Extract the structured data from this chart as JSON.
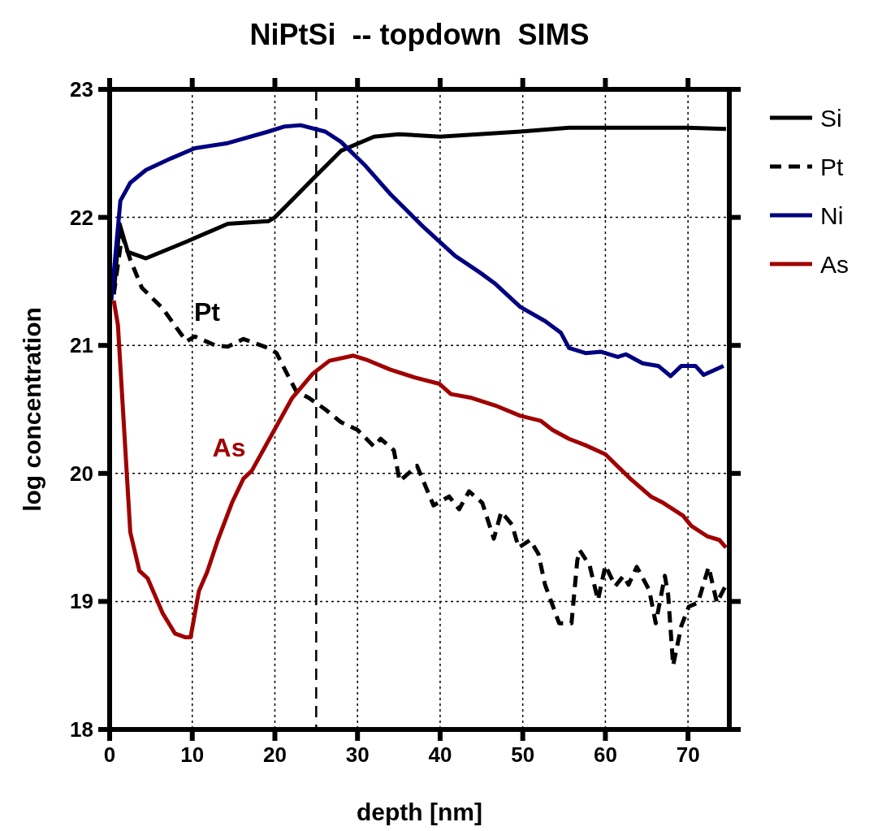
{
  "chart_data": {
    "type": "line",
    "title": "NiPtSi  -- topdown  SIMS",
    "xlabel": "depth [nm]",
    "ylabel": "log concentration",
    "xlim": [
      0,
      75
    ],
    "ylim": [
      18,
      23
    ],
    "xticks": [
      0,
      10,
      20,
      30,
      40,
      50,
      60,
      70
    ],
    "yticks": [
      18,
      19,
      20,
      21,
      22,
      23
    ],
    "grid": true,
    "legend": "right",
    "marker": "none",
    "ref_lines": [
      {
        "axis": "x",
        "value": 25,
        "line_style": "dashed",
        "color": "#000000"
      }
    ],
    "annotations": [
      "Pt",
      "As"
    ],
    "series": [
      {
        "name": "Si",
        "color": "#000000",
        "line_style": "solid",
        "x": [
          0.5,
          1.2,
          2.2,
          4.4,
          9.3,
          14.3,
          19.2,
          20,
          24.6,
          28,
          32,
          35,
          40,
          49.7,
          55.6,
          63.5,
          70,
          74.6
        ],
        "values": [
          21.4,
          21.95,
          21.73,
          21.68,
          21.81,
          21.95,
          21.97,
          22.0,
          22.3,
          22.52,
          22.63,
          22.65,
          22.63,
          22.67,
          22.7,
          22.7,
          22.7,
          22.69
        ]
      },
      {
        "name": "Pt",
        "color": "#000000",
        "line_style": "dashed",
        "x": [
          0.5,
          1.5,
          2.5,
          3.9,
          6.4,
          9.3,
          10.3,
          12.8,
          14.3,
          16.2,
          19.2,
          20.2,
          21.7,
          22.6,
          24.1,
          26.1,
          28,
          30,
          32,
          32.8,
          34.4,
          35.1,
          37.2,
          39.2,
          41.1,
          42.3,
          43.5,
          45.1,
          46.5,
          47.4,
          48.7,
          49.5,
          50.9,
          51.9,
          52.7,
          54.4,
          55.9,
          56.6,
          56.9,
          58.1,
          59.1,
          60,
          61.2,
          62.2,
          62.8,
          63.8,
          65.3,
          66.1,
          67.2,
          67.6,
          68.2,
          69.2,
          70.1,
          71.2,
          72.5,
          73.5,
          74.6
        ],
        "values": [
          21.4,
          21.86,
          21.67,
          21.45,
          21.29,
          21.03,
          21.07,
          21.0,
          20.99,
          21.05,
          20.98,
          20.94,
          20.75,
          20.64,
          20.59,
          20.5,
          20.4,
          20.34,
          20.21,
          20.27,
          20.18,
          19.94,
          20.06,
          19.75,
          19.82,
          19.72,
          19.86,
          19.77,
          19.49,
          19.7,
          19.6,
          19.42,
          19.48,
          19.37,
          19.13,
          18.83,
          18.83,
          19.32,
          19.4,
          19.28,
          19.01,
          19.28,
          19.12,
          19.2,
          19.13,
          19.27,
          19.09,
          18.83,
          19.2,
          19.05,
          18.5,
          18.81,
          18.96,
          18.99,
          19.27,
          18.99,
          19.13
        ]
      },
      {
        "name": "Ni",
        "color": "#000080",
        "line_style": "solid",
        "x": [
          0.2,
          1.3,
          2.5,
          4.4,
          7.4,
          10.3,
          14.3,
          19.2,
          21.2,
          23.1,
          26.1,
          28,
          31,
          34,
          37.9,
          41.8,
          44.8,
          46.7,
          49.7,
          52.7,
          54.6,
          55.6,
          57.6,
          59.5,
          61.5,
          62.5,
          64.5,
          66.4,
          67.9,
          69.2,
          70.9,
          71.9,
          74.3
        ],
        "values": [
          21.35,
          22.13,
          22.27,
          22.37,
          22.46,
          22.54,
          22.58,
          22.67,
          22.71,
          22.72,
          22.67,
          22.59,
          22.4,
          22.18,
          21.93,
          21.7,
          21.57,
          21.48,
          21.3,
          21.19,
          21.1,
          20.98,
          20.94,
          20.95,
          20.91,
          20.93,
          20.86,
          20.84,
          20.76,
          20.84,
          20.84,
          20.77,
          20.84
        ]
      },
      {
        "name": "As",
        "color": "#a00000",
        "line_style": "solid",
        "x": [
          0.5,
          1,
          2.5,
          3.6,
          4.6,
          6.4,
          7.9,
          9.2,
          9.8,
          10.8,
          11.8,
          13.1,
          14.8,
          16.2,
          17.2,
          20.2,
          22.1,
          24.6,
          26.6,
          29.5,
          31,
          34,
          36.9,
          39.9,
          41.3,
          43.8,
          46.7,
          49.7,
          52.2,
          53.6,
          55.6,
          57.6,
          60,
          63,
          65.5,
          67,
          69.4,
          70.4,
          72.3,
          73.8,
          74.6
        ],
        "values": [
          21.35,
          21.16,
          19.54,
          19.24,
          19.18,
          18.91,
          18.75,
          18.72,
          18.72,
          19.08,
          19.23,
          19.48,
          19.77,
          19.96,
          20.02,
          20.37,
          20.59,
          20.78,
          20.88,
          20.92,
          20.89,
          20.81,
          20.75,
          20.7,
          20.62,
          20.59,
          20.53,
          20.45,
          20.41,
          20.34,
          20.27,
          20.22,
          20.15,
          19.96,
          19.82,
          19.77,
          19.67,
          19.59,
          19.51,
          19.48,
          19.42
        ]
      }
    ]
  }
}
